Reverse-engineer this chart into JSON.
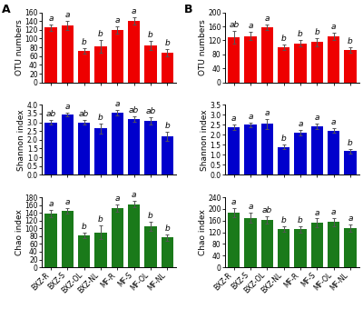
{
  "categories": [
    "BXZ-R",
    "BXZ-S",
    "BXZ-OL",
    "BXZ-NL",
    "MF-R",
    "MF-S",
    "MF-OL",
    "MF-NL"
  ],
  "panel_A": {
    "OTU": {
      "values": [
        125,
        130,
        72,
        82,
        120,
        140,
        85,
        68
      ],
      "errors": [
        8,
        10,
        6,
        15,
        8,
        8,
        10,
        8
      ],
      "labels": [
        "a",
        "a",
        "b",
        "b",
        "a",
        "a",
        "b",
        "b"
      ],
      "ylim": [
        0,
        160
      ],
      "yticks": [
        0,
        20,
        40,
        60,
        80,
        100,
        120,
        140,
        160
      ],
      "ylabel": "OTU numbers"
    },
    "Shannon": {
      "values": [
        3.0,
        3.45,
        3.0,
        2.65,
        3.55,
        3.2,
        3.1,
        2.2
      ],
      "errors": [
        0.15,
        0.12,
        0.12,
        0.3,
        0.15,
        0.15,
        0.2,
        0.25
      ],
      "labels": [
        "ab",
        "a",
        "ab",
        "b",
        "a",
        "ab",
        "ab",
        "b"
      ],
      "ylim": [
        0,
        4.0
      ],
      "yticks": [
        0.0,
        0.5,
        1.0,
        1.5,
        2.0,
        2.5,
        3.0,
        3.5,
        4.0
      ],
      "ylabel": "Shannon index"
    },
    "Chao": {
      "values": [
        138,
        145,
        82,
        90,
        152,
        162,
        105,
        77
      ],
      "errors": [
        10,
        8,
        8,
        18,
        10,
        8,
        12,
        8
      ],
      "labels": [
        "a",
        "a",
        "b",
        "b",
        "a",
        "a",
        "b",
        "b"
      ],
      "ylim": [
        0,
        180
      ],
      "yticks": [
        0,
        20,
        40,
        60,
        80,
        100,
        120,
        140,
        160,
        180
      ],
      "ylabel": "Chao index"
    }
  },
  "panel_B": {
    "OTU": {
      "values": [
        128,
        132,
        158,
        100,
        112,
        115,
        132,
        92
      ],
      "errors": [
        18,
        12,
        8,
        8,
        8,
        12,
        10,
        8
      ],
      "labels": [
        "ab",
        "a",
        "a",
        "b",
        "b",
        "b",
        "a",
        "b"
      ],
      "ylim": [
        0,
        200
      ],
      "yticks": [
        0,
        40,
        80,
        120,
        160,
        200
      ],
      "ylabel": "OTU numbers"
    },
    "Shannon": {
      "values": [
        2.38,
        2.5,
        2.55,
        1.4,
        2.1,
        2.42,
        2.22,
        1.18
      ],
      "errors": [
        0.12,
        0.1,
        0.25,
        0.1,
        0.15,
        0.15,
        0.12,
        0.12
      ],
      "labels": [
        "a",
        "a",
        "a",
        "b",
        "a",
        "a",
        "a",
        "b"
      ],
      "ylim": [
        0,
        3.5
      ],
      "yticks": [
        0.0,
        0.5,
        1.0,
        1.5,
        2.0,
        2.5,
        3.0,
        3.5
      ],
      "ylabel": "Shannon index"
    },
    "Chao": {
      "values": [
        188,
        170,
        162,
        132,
        130,
        152,
        155,
        135
      ],
      "errors": [
        15,
        18,
        12,
        10,
        12,
        15,
        15,
        12
      ],
      "labels": [
        "a",
        "a",
        "ab",
        "b",
        "b",
        "a",
        "a",
        "a"
      ],
      "ylim": [
        0,
        240
      ],
      "yticks": [
        0,
        40,
        80,
        120,
        160,
        200,
        240
      ],
      "ylabel": "Chao index"
    }
  },
  "bar_colors": {
    "OTU": "#ee0000",
    "Shannon": "#0000cc",
    "Chao": "#1a7a1a"
  },
  "error_color": "#555555",
  "ylabel_fontsize": 6.5,
  "tick_fontsize": 5.5,
  "sig_fontsize": 6.5,
  "panel_label_fontsize": 9
}
